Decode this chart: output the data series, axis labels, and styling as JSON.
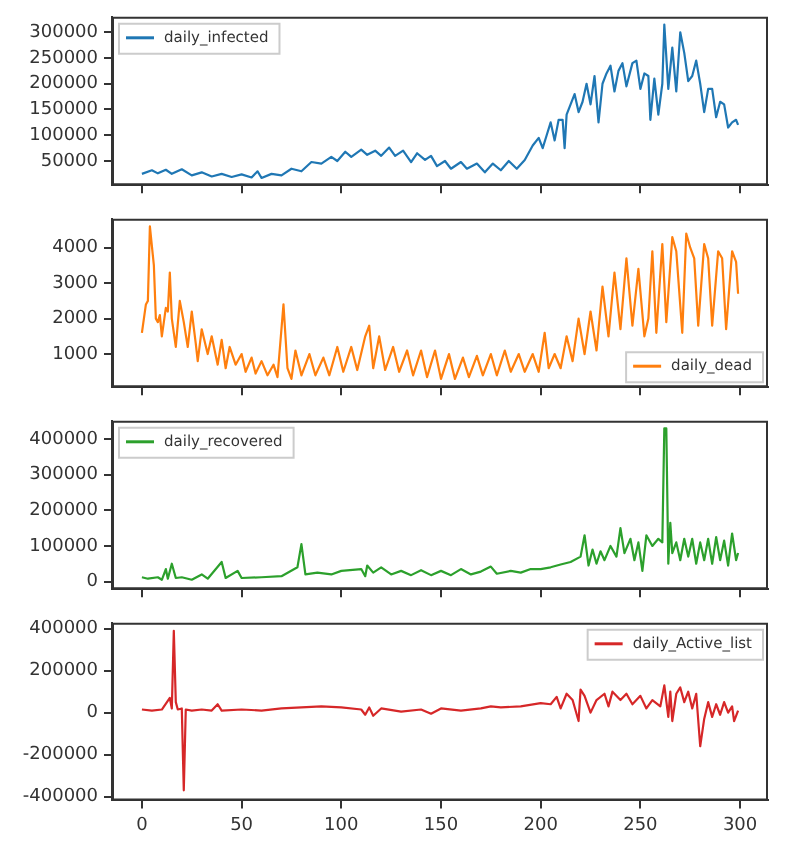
{
  "chart_data": [
    {
      "type": "line",
      "xlim": [
        -15,
        314
      ],
      "xticks": [
        {
          "value": 0,
          "label": null
        },
        {
          "value": 50,
          "label": null
        },
        {
          "value": 100,
          "label": null
        },
        {
          "value": 150,
          "label": null
        },
        {
          "value": 200,
          "label": null
        },
        {
          "value": 250,
          "label": null
        },
        {
          "value": 300,
          "label": null
        }
      ],
      "ylim": [
        3000,
        330000
      ],
      "yticks": [
        50000,
        100000,
        150000,
        200000,
        250000,
        300000
      ],
      "tick_labels": "y",
      "grid": false,
      "legend": "top left",
      "series": [
        {
          "name": "daily_infected",
          "color": "#1f77b4",
          "x": [
            0,
            5,
            8,
            12,
            15,
            20,
            25,
            30,
            35,
            40,
            45,
            50,
            55,
            58,
            60,
            65,
            70,
            75,
            80,
            85,
            90,
            95,
            98,
            102,
            105,
            110,
            113,
            117,
            120,
            124,
            127,
            131,
            135,
            138,
            142,
            145,
            148,
            152,
            155,
            160,
            163,
            168,
            172,
            176,
            180,
            184,
            188,
            192,
            196,
            199,
            201,
            203,
            205,
            207,
            209,
            211,
            212,
            213,
            215,
            217,
            219,
            221,
            223,
            225,
            227,
            229,
            231,
            233,
            235,
            237,
            239,
            241,
            243,
            246,
            248,
            250,
            252,
            254,
            255,
            257,
            259,
            261,
            262,
            264,
            266,
            268,
            270,
            272,
            274,
            276,
            278,
            280,
            282,
            284,
            286,
            288,
            290,
            292,
            294,
            296,
            298,
            299
          ],
          "values": [
            25000,
            32000,
            26000,
            33000,
            25000,
            34000,
            22000,
            28000,
            20000,
            25000,
            19000,
            24000,
            18000,
            30000,
            17000,
            25000,
            22000,
            35000,
            30000,
            48000,
            45000,
            58000,
            50000,
            68000,
            58000,
            72000,
            62000,
            70000,
            60000,
            76000,
            60000,
            70000,
            48000,
            65000,
            52000,
            60000,
            40000,
            50000,
            35000,
            48000,
            35000,
            45000,
            28000,
            45000,
            32000,
            50000,
            35000,
            52000,
            80000,
            95000,
            75000,
            100000,
            125000,
            90000,
            130000,
            130000,
            75000,
            140000,
            160000,
            180000,
            145000,
            165000,
            200000,
            160000,
            215000,
            125000,
            200000,
            220000,
            235000,
            185000,
            225000,
            240000,
            195000,
            240000,
            245000,
            190000,
            220000,
            215000,
            130000,
            210000,
            140000,
            200000,
            315000,
            190000,
            270000,
            185000,
            300000,
            260000,
            205000,
            215000,
            245000,
            200000,
            145000,
            190000,
            190000,
            135000,
            165000,
            160000,
            115000,
            125000,
            130000,
            120000
          ]
        }
      ]
    },
    {
      "type": "line",
      "xlim": [
        -15,
        314
      ],
      "xticks": [
        {
          "value": 0,
          "label": null
        },
        {
          "value": 50,
          "label": null
        },
        {
          "value": 100,
          "label": null
        },
        {
          "value": 150,
          "label": null
        },
        {
          "value": 200,
          "label": null
        },
        {
          "value": 250,
          "label": null
        },
        {
          "value": 300,
          "label": null
        }
      ],
      "ylim": [
        65,
        4815
      ],
      "yticks": [
        1000,
        2000,
        3000,
        4000
      ],
      "tick_labels": "y",
      "grid": false,
      "legend": "bottom right",
      "series": [
        {
          "name": "daily_dead",
          "color": "#ff7f0e",
          "x": [
            0,
            2,
            3,
            4,
            6,
            7,
            8,
            9,
            10,
            12,
            13,
            14,
            15,
            17,
            19,
            21,
            23,
            25,
            27,
            28,
            30,
            33,
            35,
            38,
            40,
            42,
            44,
            47,
            50,
            52,
            55,
            57,
            60,
            63,
            66,
            68,
            71,
            73,
            75,
            77,
            80,
            84,
            87,
            91,
            94,
            98,
            101,
            105,
            108,
            112,
            114,
            116,
            119,
            122,
            126,
            129,
            133,
            136,
            140,
            143,
            147,
            150,
            154,
            157,
            161,
            164,
            168,
            171,
            175,
            178,
            182,
            185,
            189,
            192,
            196,
            199,
            202,
            204,
            207,
            210,
            213,
            216,
            219,
            222,
            225,
            228,
            231,
            234,
            237,
            240,
            243,
            246,
            249,
            252,
            254,
            256,
            258,
            261,
            263,
            266,
            268,
            271,
            273,
            275,
            277,
            279,
            282,
            284,
            286,
            289,
            291,
            293,
            296,
            298,
            299
          ],
          "values": [
            1600,
            2400,
            2500,
            4600,
            3500,
            2000,
            1900,
            2100,
            1500,
            2300,
            2200,
            3300,
            2000,
            1200,
            2500,
            1900,
            1200,
            2200,
            1300,
            800,
            1700,
            1000,
            1500,
            700,
            1400,
            600,
            1200,
            700,
            1000,
            500,
            900,
            450,
            800,
            400,
            700,
            350,
            2400,
            600,
            300,
            1100,
            400,
            1000,
            400,
            900,
            400,
            1200,
            500,
            1200,
            550,
            1500,
            1800,
            600,
            1500,
            550,
            1200,
            500,
            1100,
            400,
            1100,
            350,
            1100,
            300,
            1000,
            300,
            900,
            350,
            950,
            400,
            1000,
            400,
            1100,
            500,
            1000,
            500,
            1000,
            500,
            1600,
            600,
            1000,
            600,
            1500,
            800,
            2000,
            1000,
            2200,
            1100,
            2900,
            1500,
            3300,
            1700,
            3700,
            1800,
            3400,
            1500,
            2000,
            3900,
            1600,
            4100,
            1900,
            4300,
            3900,
            1600,
            4400,
            4000,
            3700,
            1800,
            4100,
            3700,
            1800,
            3900,
            3700,
            1700,
            3900,
            3600,
            2700
          ]
        }
      ]
    },
    {
      "type": "line",
      "xlim": [
        -15,
        314
      ],
      "xticks": [
        {
          "value": 0,
          "label": null
        },
        {
          "value": 50,
          "label": null
        },
        {
          "value": 100,
          "label": null
        },
        {
          "value": 150,
          "label": null
        },
        {
          "value": 200,
          "label": null
        },
        {
          "value": 250,
          "label": null
        },
        {
          "value": 300,
          "label": null
        }
      ],
      "ylim": [
        -21500,
        451500
      ],
      "yticks": [
        0,
        100000,
        200000,
        300000,
        400000
      ],
      "tick_labels": "y",
      "grid": false,
      "legend": "top left",
      "series": [
        {
          "name": "daily_recovered",
          "color": "#2ca02c",
          "x": [
            0,
            3,
            8,
            10,
            12,
            13,
            15,
            17,
            20,
            25,
            30,
            33,
            40,
            42,
            48,
            50,
            60,
            70,
            78,
            80,
            82,
            88,
            95,
            100,
            110,
            112,
            113,
            116,
            120,
            125,
            130,
            135,
            140,
            145,
            150,
            155,
            160,
            165,
            170,
            175,
            178,
            185,
            190,
            195,
            200,
            205,
            210,
            215,
            220,
            222,
            224,
            226,
            228,
            230,
            232,
            235,
            238,
            240,
            242,
            245,
            247,
            249,
            251,
            253,
            256,
            259,
            261,
            262,
            263,
            264,
            265,
            266,
            268,
            270,
            272,
            274,
            276,
            278,
            280,
            282,
            284,
            286,
            288,
            290,
            292,
            294,
            296,
            298,
            299
          ],
          "values": [
            12000,
            8000,
            12000,
            5000,
            35000,
            8000,
            50000,
            10000,
            12000,
            5000,
            20000,
            8000,
            55000,
            10000,
            30000,
            10000,
            12000,
            15000,
            40000,
            105000,
            20000,
            25000,
            20000,
            30000,
            35000,
            15000,
            45000,
            25000,
            40000,
            20000,
            30000,
            18000,
            32000,
            18000,
            30000,
            18000,
            35000,
            20000,
            28000,
            42000,
            22000,
            30000,
            25000,
            35000,
            35000,
            40000,
            48000,
            55000,
            70000,
            130000,
            45000,
            90000,
            50000,
            85000,
            60000,
            100000,
            70000,
            150000,
            80000,
            120000,
            60000,
            110000,
            30000,
            130000,
            100000,
            120000,
            110000,
            430000,
            430000,
            50000,
            165000,
            80000,
            110000,
            60000,
            120000,
            70000,
            120000,
            50000,
            110000,
            60000,
            120000,
            50000,
            125000,
            60000,
            115000,
            45000,
            135000,
            60000,
            80000
          ]
        }
      ]
    },
    {
      "type": "line",
      "xlim": [
        -15,
        314
      ],
      "xticks": [
        0,
        50,
        100,
        150,
        200,
        250,
        300
      ],
      "ylim": [
        -418000,
        428000
      ],
      "yticks": [
        -400000,
        -200000,
        0,
        200000,
        400000
      ],
      "grid": false,
      "legend": "top right",
      "series": [
        {
          "name": "daily_Active_list",
          "color": "#d62728",
          "x": [
            0,
            5,
            10,
            14,
            15,
            16,
            17,
            18,
            20,
            21,
            22,
            25,
            30,
            35,
            38,
            40,
            50,
            60,
            70,
            80,
            90,
            100,
            110,
            112,
            114,
            116,
            120,
            130,
            140,
            145,
            150,
            160,
            170,
            175,
            180,
            190,
            200,
            205,
            208,
            210,
            213,
            216,
            219,
            220,
            222,
            225,
            228,
            232,
            234,
            236,
            240,
            243,
            246,
            250,
            253,
            256,
            260,
            262,
            264,
            265,
            266,
            268,
            270,
            272,
            274,
            276,
            278,
            280,
            282,
            284,
            286,
            288,
            290,
            292,
            294,
            296,
            297,
            299
          ],
          "values": [
            15000,
            10000,
            15000,
            70000,
            20000,
            390000,
            50000,
            15000,
            20000,
            -370000,
            15000,
            10000,
            15000,
            10000,
            40000,
            10000,
            15000,
            10000,
            20000,
            25000,
            30000,
            25000,
            15000,
            -10000,
            25000,
            -15000,
            20000,
            5000,
            15000,
            -5000,
            20000,
            10000,
            20000,
            30000,
            25000,
            30000,
            45000,
            40000,
            75000,
            20000,
            90000,
            60000,
            -40000,
            110000,
            80000,
            0,
            60000,
            90000,
            30000,
            100000,
            60000,
            90000,
            40000,
            80000,
            20000,
            60000,
            30000,
            130000,
            -20000,
            100000,
            -40000,
            90000,
            120000,
            50000,
            100000,
            20000,
            90000,
            -160000,
            -30000,
            50000,
            -20000,
            40000,
            -10000,
            50000,
            0,
            30000,
            -40000,
            10000
          ]
        }
      ]
    }
  ]
}
